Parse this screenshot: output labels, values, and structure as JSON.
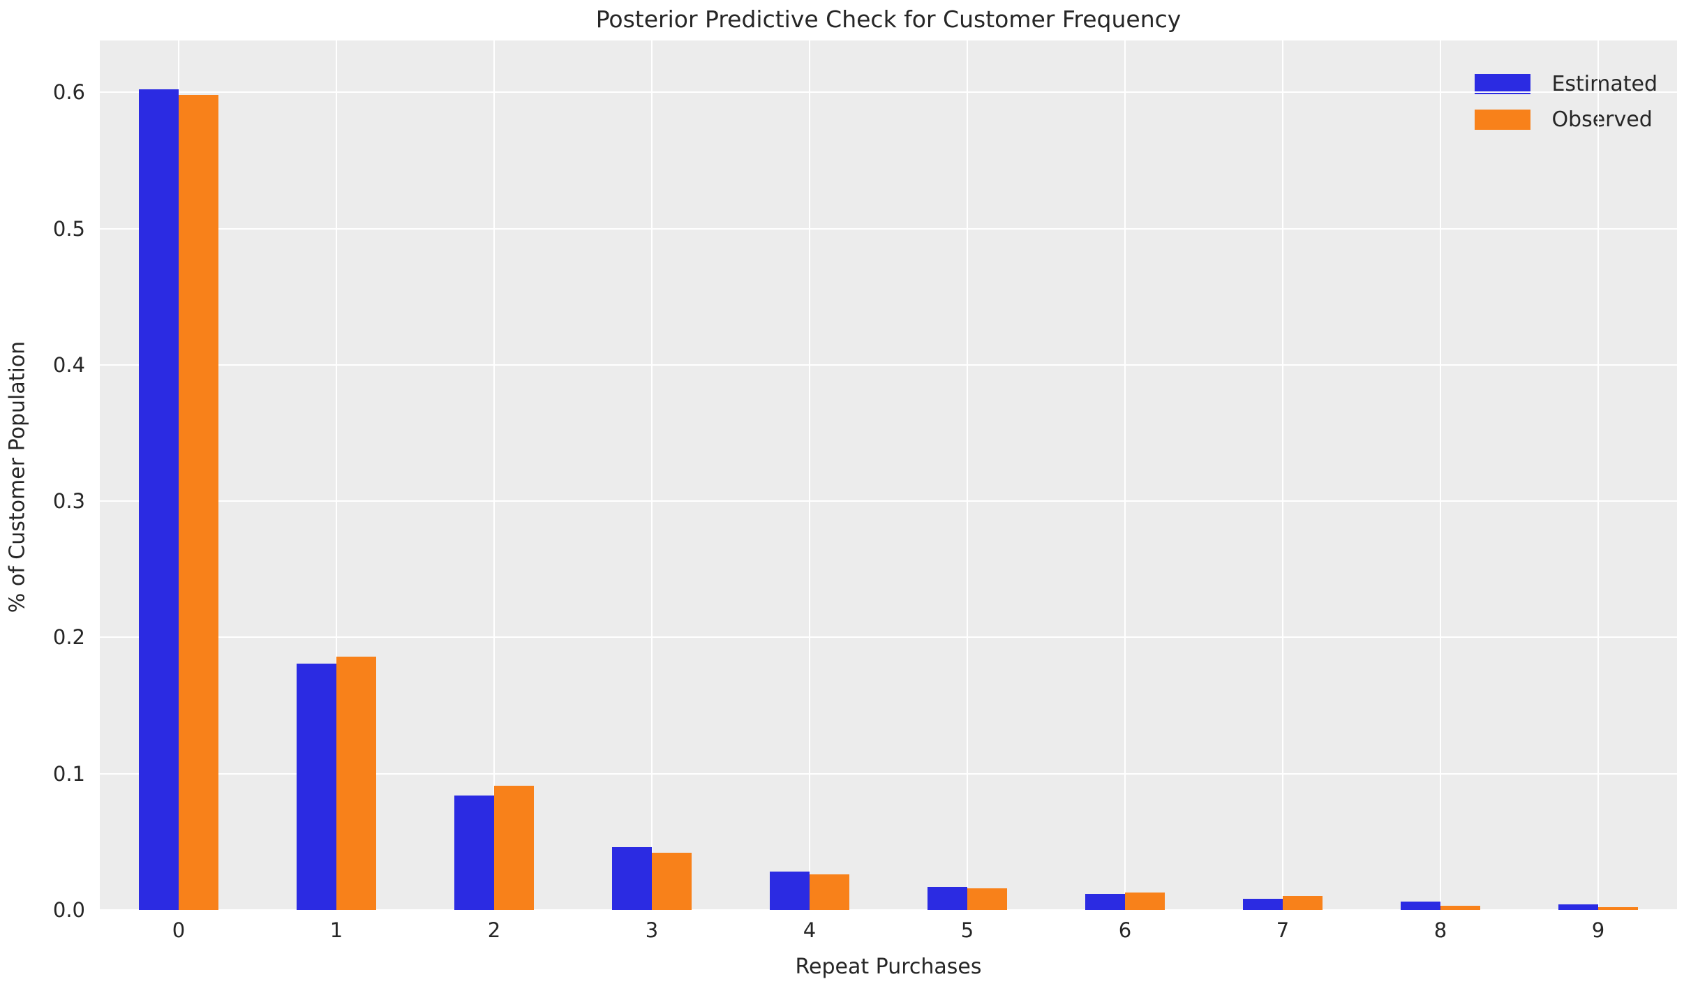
{
  "chart_data": {
    "type": "bar",
    "title": "Posterior Predictive Check for Customer Frequency",
    "xlabel": "Repeat Purchases",
    "ylabel": "% of Customer Population",
    "categories": [
      "0",
      "1",
      "2",
      "3",
      "4",
      "5",
      "6",
      "7",
      "8",
      "9"
    ],
    "series": [
      {
        "name": "Estimated",
        "color": "#2b2be2",
        "values": [
          0.602,
          0.181,
          0.084,
          0.046,
          0.028,
          0.017,
          0.012,
          0.008,
          0.006,
          0.004
        ]
      },
      {
        "name": "Observed",
        "color": "#f8811a",
        "values": [
          0.598,
          0.186,
          0.091,
          0.042,
          0.026,
          0.016,
          0.013,
          0.01,
          0.003,
          0.002
        ]
      }
    ],
    "yticks": [
      0.0,
      0.1,
      0.2,
      0.3,
      0.4,
      0.5,
      0.6
    ],
    "ytick_labels": [
      "0.0",
      "0.1",
      "0.2",
      "0.3",
      "0.4",
      "0.5",
      "0.6"
    ],
    "ylim": [
      0,
      0.638
    ],
    "grid": true,
    "legend_position": "upper right",
    "plot_background": "#ececec",
    "grid_color": "#ffffff"
  }
}
